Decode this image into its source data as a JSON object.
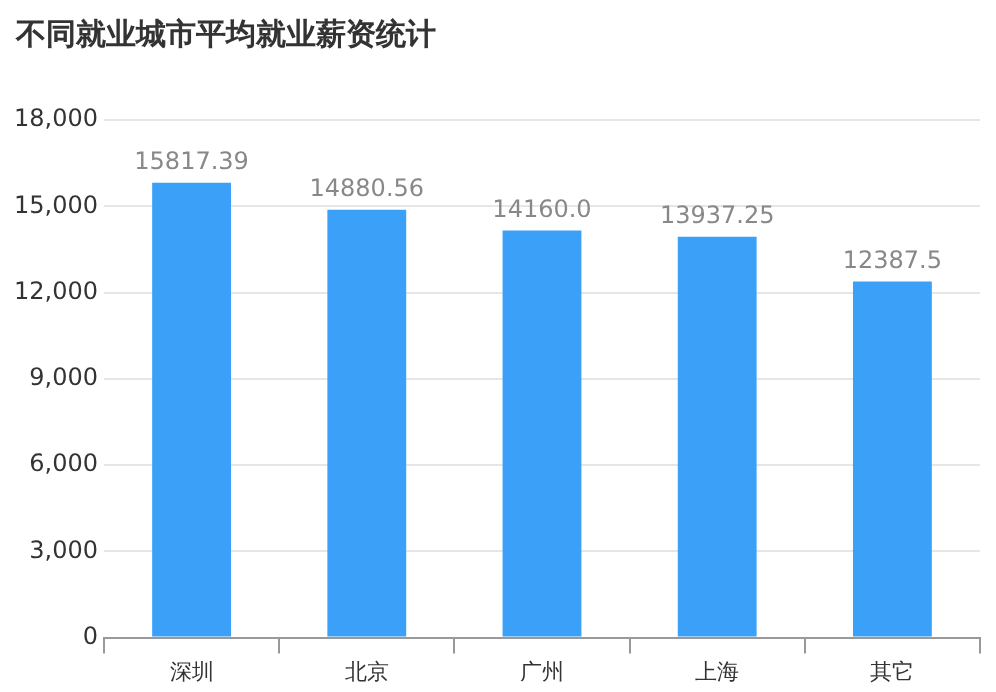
{
  "chart_data": {
    "type": "bar",
    "title": "不同就业城市平均就业薪资统计",
    "categories": [
      "深圳",
      "北京",
      "广州",
      "上海",
      "其它"
    ],
    "values": [
      15817.39,
      14880.56,
      14160,
      13937.25,
      12387.5
    ],
    "value_labels": [
      "15817.39",
      "14880.56",
      "14160.0",
      "13937.25",
      "12387.5"
    ],
    "color": "#3ba1f8",
    "ylim": [
      0,
      18000
    ],
    "yticks": [
      {
        "value": 0,
        "label": "0"
      },
      {
        "value": 3000,
        "label": "3,000"
      },
      {
        "value": 6000,
        "label": "6,000"
      },
      {
        "value": 9000,
        "label": "9,000"
      },
      {
        "value": 12000,
        "label": "12,000"
      },
      {
        "value": 15000,
        "label": "15,000"
      },
      {
        "value": 18000,
        "label": "18,000"
      }
    ],
    "grid": "y"
  }
}
